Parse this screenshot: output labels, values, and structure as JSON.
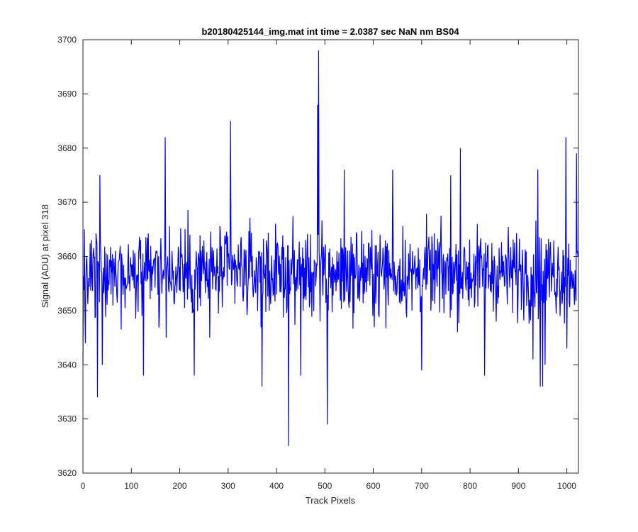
{
  "chart_data": {
    "type": "line",
    "title": "b20180425144_img.mat int time = 2.0387 sec  NaN nm BS04",
    "xlabel": "Track Pixels",
    "ylabel": "Signal (ADU) at pixel 318",
    "xlim": [
      0,
      1024
    ],
    "ylim": [
      3620,
      3700
    ],
    "xticks": [
      0,
      100,
      200,
      300,
      400,
      500,
      600,
      700,
      800,
      900,
      1000
    ],
    "xtick_labels": [
      "0",
      "100",
      "200",
      "300",
      "400",
      "500",
      "600",
      "700",
      "800",
      "900",
      "1000"
    ],
    "yticks": [
      3620,
      3630,
      3640,
      3650,
      3660,
      3670,
      3680,
      3690,
      3700
    ],
    "ytick_labels": [
      "3620",
      "3630",
      "3640",
      "3650",
      "3660",
      "3670",
      "3680",
      "3690",
      "3700"
    ],
    "grid": false,
    "box": true,
    "series": [
      {
        "color": "#0000ff",
        "n_points": 1024,
        "baseline": 3657,
        "noise_range": [
          3645,
          3670
        ],
        "x": [
          0,
          3,
          5,
          8,
          30,
          35,
          40,
          60,
          95,
          125,
          170,
          172,
          175,
          230,
          262,
          300,
          305,
          370,
          380,
          400,
          425,
          450,
          485,
          487,
          490,
          505,
          507,
          540,
          640,
          680,
          700,
          760,
          780,
          830,
          930,
          940,
          945,
          950,
          955,
          998,
          1000,
          1020
        ],
        "values": [
          3640,
          3665,
          3644,
          3660,
          3634,
          3675,
          3640,
          3657,
          3655,
          3638,
          3682,
          3645,
          3660,
          3638,
          3645,
          3660,
          3685,
          3636,
          3662,
          3653,
          3625,
          3638,
          3688,
          3698,
          3648,
          3629,
          3650,
          3676,
          3676,
          3650,
          3639,
          3675,
          3680,
          3638,
          3641,
          3676,
          3636,
          3636,
          3640,
          3682,
          3643,
          3679
        ]
      }
    ]
  }
}
